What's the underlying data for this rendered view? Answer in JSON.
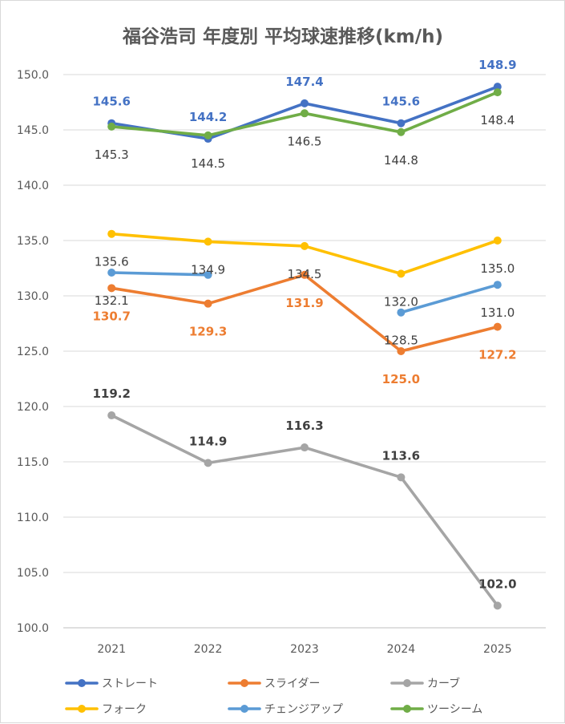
{
  "chart_data": {
    "type": "line",
    "title": "福谷浩司 年度別 平均球速推移(km/h)",
    "xlabel": "",
    "ylabel": "",
    "categories": [
      "2021",
      "2022",
      "2023",
      "2024",
      "2025"
    ],
    "ylim": [
      100,
      150
    ],
    "yticks": [
      "100.0",
      "105.0",
      "110.0",
      "115.0",
      "120.0",
      "125.0",
      "130.0",
      "135.0",
      "140.0",
      "145.0",
      "150.0"
    ],
    "grid": true,
    "legend_position": "bottom",
    "series": [
      {
        "name": "ストレート",
        "color": "#4472C4",
        "values": [
          145.6,
          144.2,
          147.4,
          145.6,
          148.9
        ],
        "labels": [
          "145.6",
          "144.2",
          "147.4",
          "145.6",
          "148.9"
        ],
        "label_color": "#4472C4",
        "label_pos": "above",
        "label_bold": true
      },
      {
        "name": "スライダー",
        "color": "#ED7D31",
        "values": [
          130.7,
          129.3,
          131.9,
          125.0,
          127.2
        ],
        "labels": [
          "130.7",
          "129.3",
          "131.9",
          "125.0",
          "127.2"
        ],
        "label_color": "#ED7D31",
        "label_pos": "below",
        "label_bold": true
      },
      {
        "name": "カーブ",
        "color": "#A5A5A5",
        "values": [
          119.2,
          114.9,
          116.3,
          113.6,
          102.0
        ],
        "labels": [
          "119.2",
          "114.9",
          "116.3",
          "113.6",
          "102.0"
        ],
        "label_color": "#404040",
        "label_pos": "above",
        "label_bold": true
      },
      {
        "name": "フォーク",
        "color": "#FFC000",
        "values": [
          135.6,
          134.9,
          134.5,
          132.0,
          135.0
        ],
        "labels": [
          "135.6",
          "134.9",
          "134.5",
          "132.0",
          "135.0"
        ],
        "label_color": "#404040",
        "label_pos": "below",
        "label_bold": false
      },
      {
        "name": "チェンジアップ",
        "color": "#5B9BD5",
        "values": [
          132.1,
          131.9,
          null,
          128.5,
          131.0
        ],
        "labels": [
          "132.1",
          "",
          "",
          "128.5",
          "131.0"
        ],
        "label_color": "#404040",
        "label_pos": "below",
        "label_bold": false
      },
      {
        "name": "ツーシーム",
        "color": "#70AD47",
        "values": [
          145.3,
          144.5,
          146.5,
          144.8,
          148.4
        ],
        "labels": [
          "145.3",
          "144.5",
          "146.5",
          "144.8",
          "148.4"
        ],
        "label_color": "#404040",
        "label_pos": "below",
        "label_bold": false
      }
    ]
  }
}
